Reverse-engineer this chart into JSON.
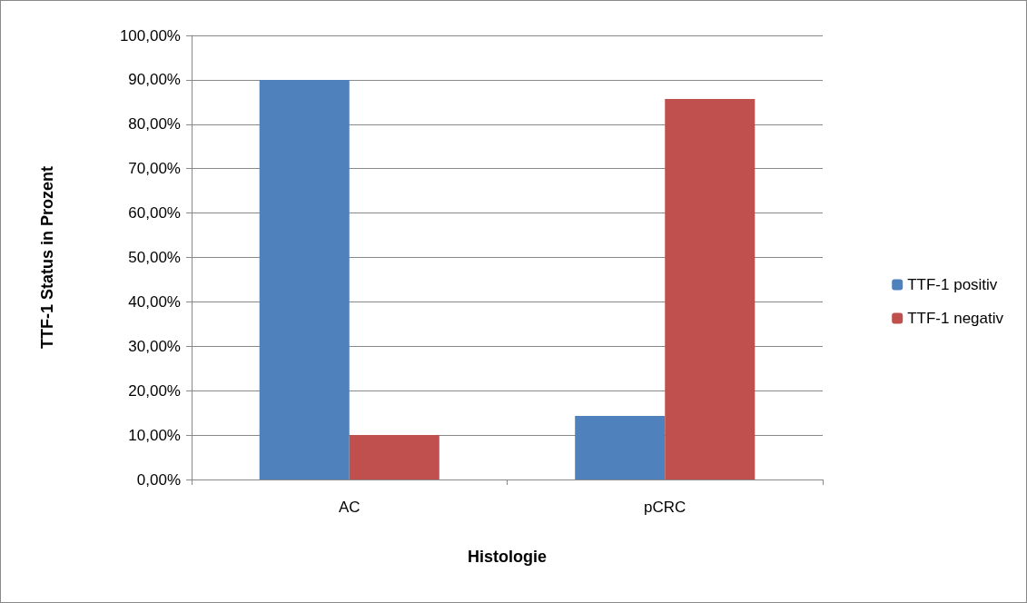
{
  "chart_data": {
    "type": "bar",
    "xlabel": "Histologie",
    "ylabel": "TTF-1 Status in Prozent",
    "categories": [
      "AC",
      "pCRC"
    ],
    "series": [
      {
        "name": "TTF-1 positiv",
        "color": "#4f81bd",
        "values": [
          90,
          14.3
        ]
      },
      {
        "name": "TTF-1 negativ",
        "color": "#c0504d",
        "values": [
          10,
          85.7
        ]
      }
    ],
    "ylim": [
      0,
      100
    ],
    "yticks": [
      {
        "value": 0,
        "label": "0,00%"
      },
      {
        "value": 10,
        "label": "10,00%"
      },
      {
        "value": 20,
        "label": "20,00%"
      },
      {
        "value": 30,
        "label": "30,00%"
      },
      {
        "value": 40,
        "label": "40,00%"
      },
      {
        "value": 50,
        "label": "50,00%"
      },
      {
        "value": 60,
        "label": "60,00%"
      },
      {
        "value": 70,
        "label": "70,00%"
      },
      {
        "value": 80,
        "label": "80,00%"
      },
      {
        "value": 90,
        "label": "90,00%"
      },
      {
        "value": 100,
        "label": "100,00%"
      }
    ],
    "grid": "y",
    "legend": "right"
  }
}
